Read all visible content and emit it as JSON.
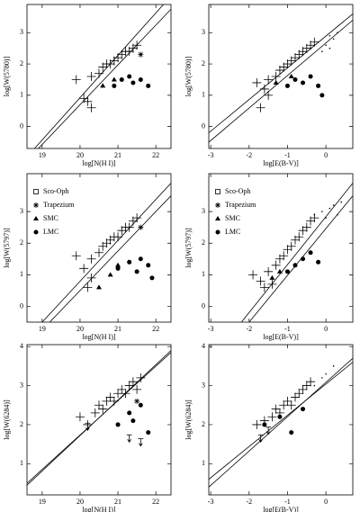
{
  "chart_data": [
    {
      "type": "scatter",
      "xlabel": "log[N(H I)]",
      "ylabel": "log[W(5780)]",
      "xlim": [
        18.6,
        22.4
      ],
      "ylim": [
        -0.7,
        3.9
      ],
      "xticks": [
        19,
        20,
        21,
        22
      ],
      "yticks": [
        0,
        1,
        2,
        3
      ],
      "color": "#000",
      "fits": [
        {
          "x": [
            18.8,
            22.2
          ],
          "y": [
            -0.7,
            3.9
          ]
        },
        {
          "x": [
            18.9,
            22.4
          ],
          "y": [
            -0.7,
            3.75
          ]
        }
      ],
      "series": [
        {
          "marker": "plus",
          "x": [
            19.9,
            20.1,
            20.3,
            20.5,
            20.6,
            20.7,
            20.8,
            20.9,
            21.0,
            21.1,
            21.2,
            21.3,
            21.4,
            21.5,
            20.2,
            20.3
          ],
          "y": [
            1.5,
            0.9,
            1.6,
            1.7,
            1.9,
            2.0,
            2.0,
            2.1,
            2.2,
            2.3,
            2.4,
            2.4,
            2.5,
            2.6,
            0.8,
            0.6
          ]
        },
        {
          "marker": "circle",
          "x": [
            20.9,
            21.1,
            21.3,
            21.4,
            21.6,
            21.8
          ],
          "y": [
            1.3,
            1.5,
            1.6,
            1.4,
            1.5,
            1.3
          ]
        },
        {
          "marker": "triangle",
          "x": [
            20.6,
            20.9
          ],
          "y": [
            1.3,
            1.5
          ]
        },
        {
          "marker": "asterisk",
          "x": [
            21.6
          ],
          "y": [
            2.3
          ]
        }
      ]
    },
    {
      "type": "scatter",
      "xlabel": "log[E(B-V)]",
      "ylabel": "log[W(5780)]",
      "xlim": [
        -3.05,
        0.7
      ],
      "ylim": [
        -0.7,
        3.9
      ],
      "xticks": [
        -3,
        -2,
        -1,
        0
      ],
      "yticks": [
        0,
        1,
        2,
        3
      ],
      "color": "#000",
      "fits": [
        {
          "x": [
            -3.05,
            0.7
          ],
          "y": [
            -0.2,
            3.6
          ]
        },
        {
          "x": [
            -3.05,
            0.7
          ],
          "y": [
            -0.5,
            3.4
          ]
        }
      ],
      "series": [
        {
          "marker": "plus",
          "x": [
            -1.8,
            -1.6,
            -1.5,
            -1.3,
            -1.2,
            -1.1,
            -1.0,
            -0.9,
            -0.8,
            -0.7,
            -0.6,
            -0.5,
            -0.4,
            -0.3,
            -1.5,
            -1.7
          ],
          "y": [
            1.4,
            1.2,
            1.5,
            1.6,
            1.8,
            1.9,
            2.0,
            2.1,
            2.2,
            2.3,
            2.4,
            2.5,
            2.6,
            2.7,
            1.0,
            0.6
          ]
        },
        {
          "marker": "circle",
          "x": [
            -1.0,
            -0.8,
            -0.6,
            -0.4,
            -0.2,
            -0.1
          ],
          "y": [
            1.3,
            1.5,
            1.4,
            1.6,
            1.3,
            1.0
          ]
        },
        {
          "marker": "triangle",
          "x": [
            -1.3,
            -0.9
          ],
          "y": [
            1.4,
            1.6
          ]
        },
        {
          "marker": "dot",
          "x": [
            -0.4,
            -0.2,
            0.0,
            0.1,
            0.2,
            0.3,
            -0.1,
            0.1
          ],
          "y": [
            2.5,
            2.7,
            2.6,
            2.9,
            2.8,
            3.0,
            2.4,
            2.5
          ]
        }
      ]
    },
    {
      "type": "scatter",
      "xlabel": "log[N(H I)]",
      "ylabel": "log[W(5797)]",
      "xlim": [
        18.6,
        22.4
      ],
      "ylim": [
        -0.5,
        4.2
      ],
      "xticks": [
        19,
        20,
        21,
        22
      ],
      "yticks": [
        0,
        1,
        2,
        3
      ],
      "color": "#000",
      "legend": [
        {
          "label": "Sco-Oph",
          "marker": "square"
        },
        {
          "label": "Trapezium",
          "marker": "asterisk"
        },
        {
          "label": "SMC",
          "marker": "triangle"
        },
        {
          "label": "LMC",
          "marker": "circle"
        }
      ],
      "fits": [
        {
          "x": [
            19.0,
            22.4
          ],
          "y": [
            -0.5,
            3.9
          ]
        },
        {
          "x": [
            19.2,
            22.4
          ],
          "y": [
            -0.5,
            3.5
          ]
        }
      ],
      "series": [
        {
          "marker": "plus",
          "x": [
            19.9,
            20.1,
            20.3,
            20.5,
            20.6,
            20.7,
            20.8,
            20.9,
            21.0,
            21.1,
            21.2,
            21.3,
            21.4,
            21.5,
            20.2,
            20.3
          ],
          "y": [
            1.6,
            1.2,
            1.5,
            1.7,
            1.9,
            2.0,
            2.1,
            2.2,
            2.2,
            2.4,
            2.5,
            2.5,
            2.7,
            2.8,
            0.6,
            0.9
          ]
        },
        {
          "marker": "circle",
          "x": [
            21.0,
            21.3,
            21.5,
            21.6,
            21.8,
            21.9
          ],
          "y": [
            1.2,
            1.4,
            1.1,
            1.5,
            1.3,
            0.9
          ]
        },
        {
          "marker": "triangle",
          "x": [
            20.5,
            20.8,
            21.0
          ],
          "y": [
            0.6,
            1.0,
            1.3
          ]
        },
        {
          "marker": "asterisk",
          "x": [
            21.6
          ],
          "y": [
            2.5
          ]
        }
      ]
    },
    {
      "type": "scatter",
      "xlabel": "log[E(B-V)]",
      "ylabel": "log[W(5797)]",
      "xlim": [
        -3.05,
        0.7
      ],
      "ylim": [
        -0.5,
        4.2
      ],
      "xticks": [
        -3,
        -2,
        -1,
        0
      ],
      "yticks": [
        0,
        1,
        2,
        3
      ],
      "color": "#000",
      "legend": [
        {
          "label": "Sco-Oph",
          "marker": "square"
        },
        {
          "label": "Trapezium",
          "marker": "asterisk"
        },
        {
          "label": "SMC",
          "marker": "triangle"
        },
        {
          "label": "LMC",
          "marker": "circle"
        }
      ],
      "fits": [
        {
          "x": [
            -2.2,
            0.7
          ],
          "y": [
            -0.5,
            3.9
          ]
        },
        {
          "x": [
            -2.0,
            0.7
          ],
          "y": [
            -0.5,
            3.5
          ]
        }
      ],
      "series": [
        {
          "marker": "plus",
          "x": [
            -1.9,
            -1.7,
            -1.5,
            -1.3,
            -1.2,
            -1.1,
            -1.0,
            -0.9,
            -0.8,
            -0.7,
            -0.6,
            -0.5,
            -0.4,
            -0.3,
            -1.6,
            -1.4
          ],
          "y": [
            1.0,
            0.8,
            1.1,
            1.3,
            1.5,
            1.6,
            1.8,
            1.9,
            2.1,
            2.2,
            2.4,
            2.5,
            2.7,
            2.8,
            0.6,
            0.7
          ]
        },
        {
          "marker": "circle",
          "x": [
            -1.0,
            -0.8,
            -0.6,
            -0.4,
            -0.2
          ],
          "y": [
            1.1,
            1.3,
            1.5,
            1.7,
            1.4
          ]
        },
        {
          "marker": "triangle",
          "x": [
            -1.4,
            -1.2
          ],
          "y": [
            0.9,
            1.1
          ]
        },
        {
          "marker": "dot",
          "x": [
            -0.3,
            -0.1,
            0.0,
            0.1,
            0.2,
            0.3,
            0.4
          ],
          "y": [
            2.9,
            3.0,
            2.8,
            3.1,
            3.2,
            2.9,
            3.3
          ]
        }
      ]
    },
    {
      "type": "scatter",
      "xlabel": "log[N(H I)]",
      "ylabel": "log[W(6284)]",
      "xlim": [
        18.6,
        22.4
      ],
      "ylim": [
        0.2,
        4.05
      ],
      "xticks": [
        19,
        20,
        21,
        22
      ],
      "yticks": [
        1,
        2,
        3,
        4
      ],
      "color": "#000",
      "fits": [
        {
          "x": [
            18.6,
            22.4
          ],
          "y": [
            0.5,
            3.85
          ]
        },
        {
          "x": [
            18.6,
            22.4
          ],
          "y": [
            0.45,
            3.9
          ]
        }
      ],
      "series": [
        {
          "marker": "plus",
          "x": [
            20.0,
            20.2,
            20.4,
            20.5,
            20.6,
            20.7,
            20.8,
            20.9,
            21.0,
            21.1,
            21.2,
            21.3,
            21.4,
            21.5,
            21.6
          ],
          "y": [
            2.2,
            2.0,
            2.3,
            2.5,
            2.4,
            2.6,
            2.7,
            2.6,
            2.8,
            2.9,
            2.8,
            3.0,
            3.1,
            2.9,
            3.2
          ]
        },
        {
          "marker": "circle",
          "x": [
            21.0,
            21.3,
            21.4,
            21.6,
            21.8
          ],
          "y": [
            2.0,
            2.3,
            2.1,
            2.5,
            1.8
          ]
        },
        {
          "marker": "limit",
          "x": [
            20.2,
            21.3,
            21.6
          ],
          "y": [
            1.9,
            1.6,
            1.5
          ]
        },
        {
          "marker": "asterisk",
          "x": [
            21.5
          ],
          "y": [
            2.6
          ]
        }
      ]
    },
    {
      "type": "scatter",
      "xlabel": "log[E(B-V)]",
      "ylabel": "log[W(6284)]",
      "xlim": [
        -3.05,
        0.7
      ],
      "ylim": [
        0.2,
        4.05
      ],
      "xticks": [
        -3,
        -2,
        -1,
        0
      ],
      "yticks": [
        1,
        2,
        3,
        4
      ],
      "color": "#000",
      "fits": [
        {
          "x": [
            -3.05,
            0.7
          ],
          "y": [
            0.6,
            3.6
          ]
        },
        {
          "x": [
            -3.05,
            0.7
          ],
          "y": [
            0.4,
            3.7
          ]
        }
      ],
      "series": [
        {
          "marker": "plus",
          "x": [
            -1.8,
            -1.6,
            -1.4,
            -1.3,
            -1.2,
            -1.1,
            -1.0,
            -0.9,
            -0.8,
            -0.7,
            -0.6,
            -0.5,
            -0.4
          ],
          "y": [
            2.0,
            2.1,
            2.2,
            2.4,
            2.3,
            2.5,
            2.6,
            2.5,
            2.7,
            2.8,
            2.9,
            3.0,
            3.1
          ]
        },
        {
          "marker": "circle",
          "x": [
            -1.6,
            -1.2,
            -0.9,
            -0.6
          ],
          "y": [
            2.0,
            2.2,
            1.8,
            2.4
          ]
        },
        {
          "marker": "limit",
          "x": [
            -1.7,
            -1.5
          ],
          "y": [
            1.6,
            1.8
          ]
        },
        {
          "marker": "dot",
          "x": [
            -0.3,
            -0.1,
            0.0,
            0.2
          ],
          "y": [
            3.0,
            3.2,
            3.3,
            3.5
          ]
        }
      ]
    }
  ]
}
